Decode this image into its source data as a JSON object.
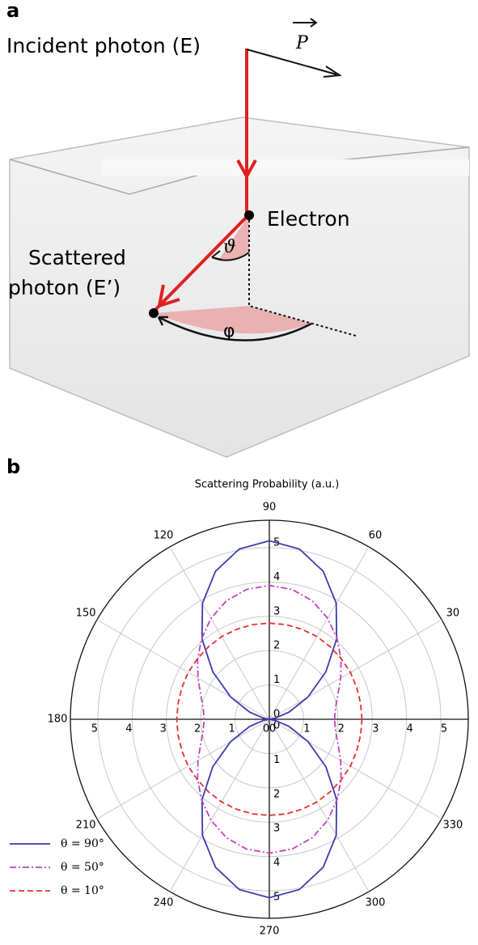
{
  "panel_a": {
    "label": "a",
    "incident": "Incident photon (E)",
    "polarization": "P",
    "electron": "Electron",
    "scattered": [
      "Scattered",
      "photon (E’)"
    ],
    "polar_angle": "ϑ",
    "azimuth": "φ"
  },
  "chart_data": {
    "type": "polar",
    "panel_label": "b",
    "title": "Scattering Probability (a.u.)",
    "theta": [
      0,
      10,
      20,
      30,
      40,
      50,
      60,
      70,
      80,
      90,
      100,
      110,
      120,
      130,
      140,
      150,
      160,
      170,
      180,
      190,
      200,
      210,
      220,
      230,
      240,
      250,
      260,
      270,
      280,
      290,
      300,
      310,
      320,
      330,
      340,
      350
    ],
    "series": [
      {
        "name": "θ = 90°",
        "color": "#3a3aae",
        "linestyle": "solid",
        "values": [
          0,
          0.16,
          0.61,
          1.3,
          2.15,
          3.05,
          3.9,
          4.59,
          5.04,
          5.2,
          5.04,
          4.59,
          3.9,
          3.05,
          2.15,
          1.3,
          0.61,
          0.16,
          0,
          0.16,
          0.61,
          1.3,
          2.15,
          3.05,
          3.9,
          4.59,
          5.04,
          5.2,
          5.04,
          4.59,
          3.9,
          3.05,
          2.15,
          1.3,
          0.61,
          0.16
        ]
      },
      {
        "name": "θ = 50°",
        "color": "#c040c8",
        "linestyle": "dashdot",
        "values": [
          1.9,
          1.96,
          2.13,
          2.4,
          2.73,
          3.07,
          3.4,
          3.67,
          3.84,
          3.9,
          3.84,
          3.67,
          3.4,
          3.07,
          2.73,
          2.4,
          2.13,
          1.96,
          1.9,
          1.96,
          2.13,
          2.4,
          2.73,
          3.07,
          3.4,
          3.67,
          3.84,
          3.9,
          3.84,
          3.67,
          3.4,
          3.07,
          2.73,
          2.4,
          2.13,
          1.96
        ]
      },
      {
        "name": "θ = 10°",
        "color": "#e53030",
        "linestyle": "dashed",
        "values": [
          2.7,
          2.7,
          2.71,
          2.73,
          2.74,
          2.76,
          2.78,
          2.79,
          2.8,
          2.8,
          2.8,
          2.79,
          2.78,
          2.76,
          2.74,
          2.73,
          2.71,
          2.7,
          2.7,
          2.7,
          2.71,
          2.73,
          2.74,
          2.76,
          2.78,
          2.79,
          2.8,
          2.8,
          2.8,
          2.79,
          2.78,
          2.76,
          2.74,
          2.73,
          2.71,
          2.7
        ]
      }
    ],
    "rlim": [
      0,
      5.8
    ],
    "rticks": [
      0,
      1,
      2,
      3,
      4,
      5
    ],
    "thetaticks": [
      0,
      30,
      60,
      90,
      120,
      150,
      180,
      210,
      240,
      270,
      300,
      330
    ],
    "grid": true,
    "legend": "lower left"
  }
}
